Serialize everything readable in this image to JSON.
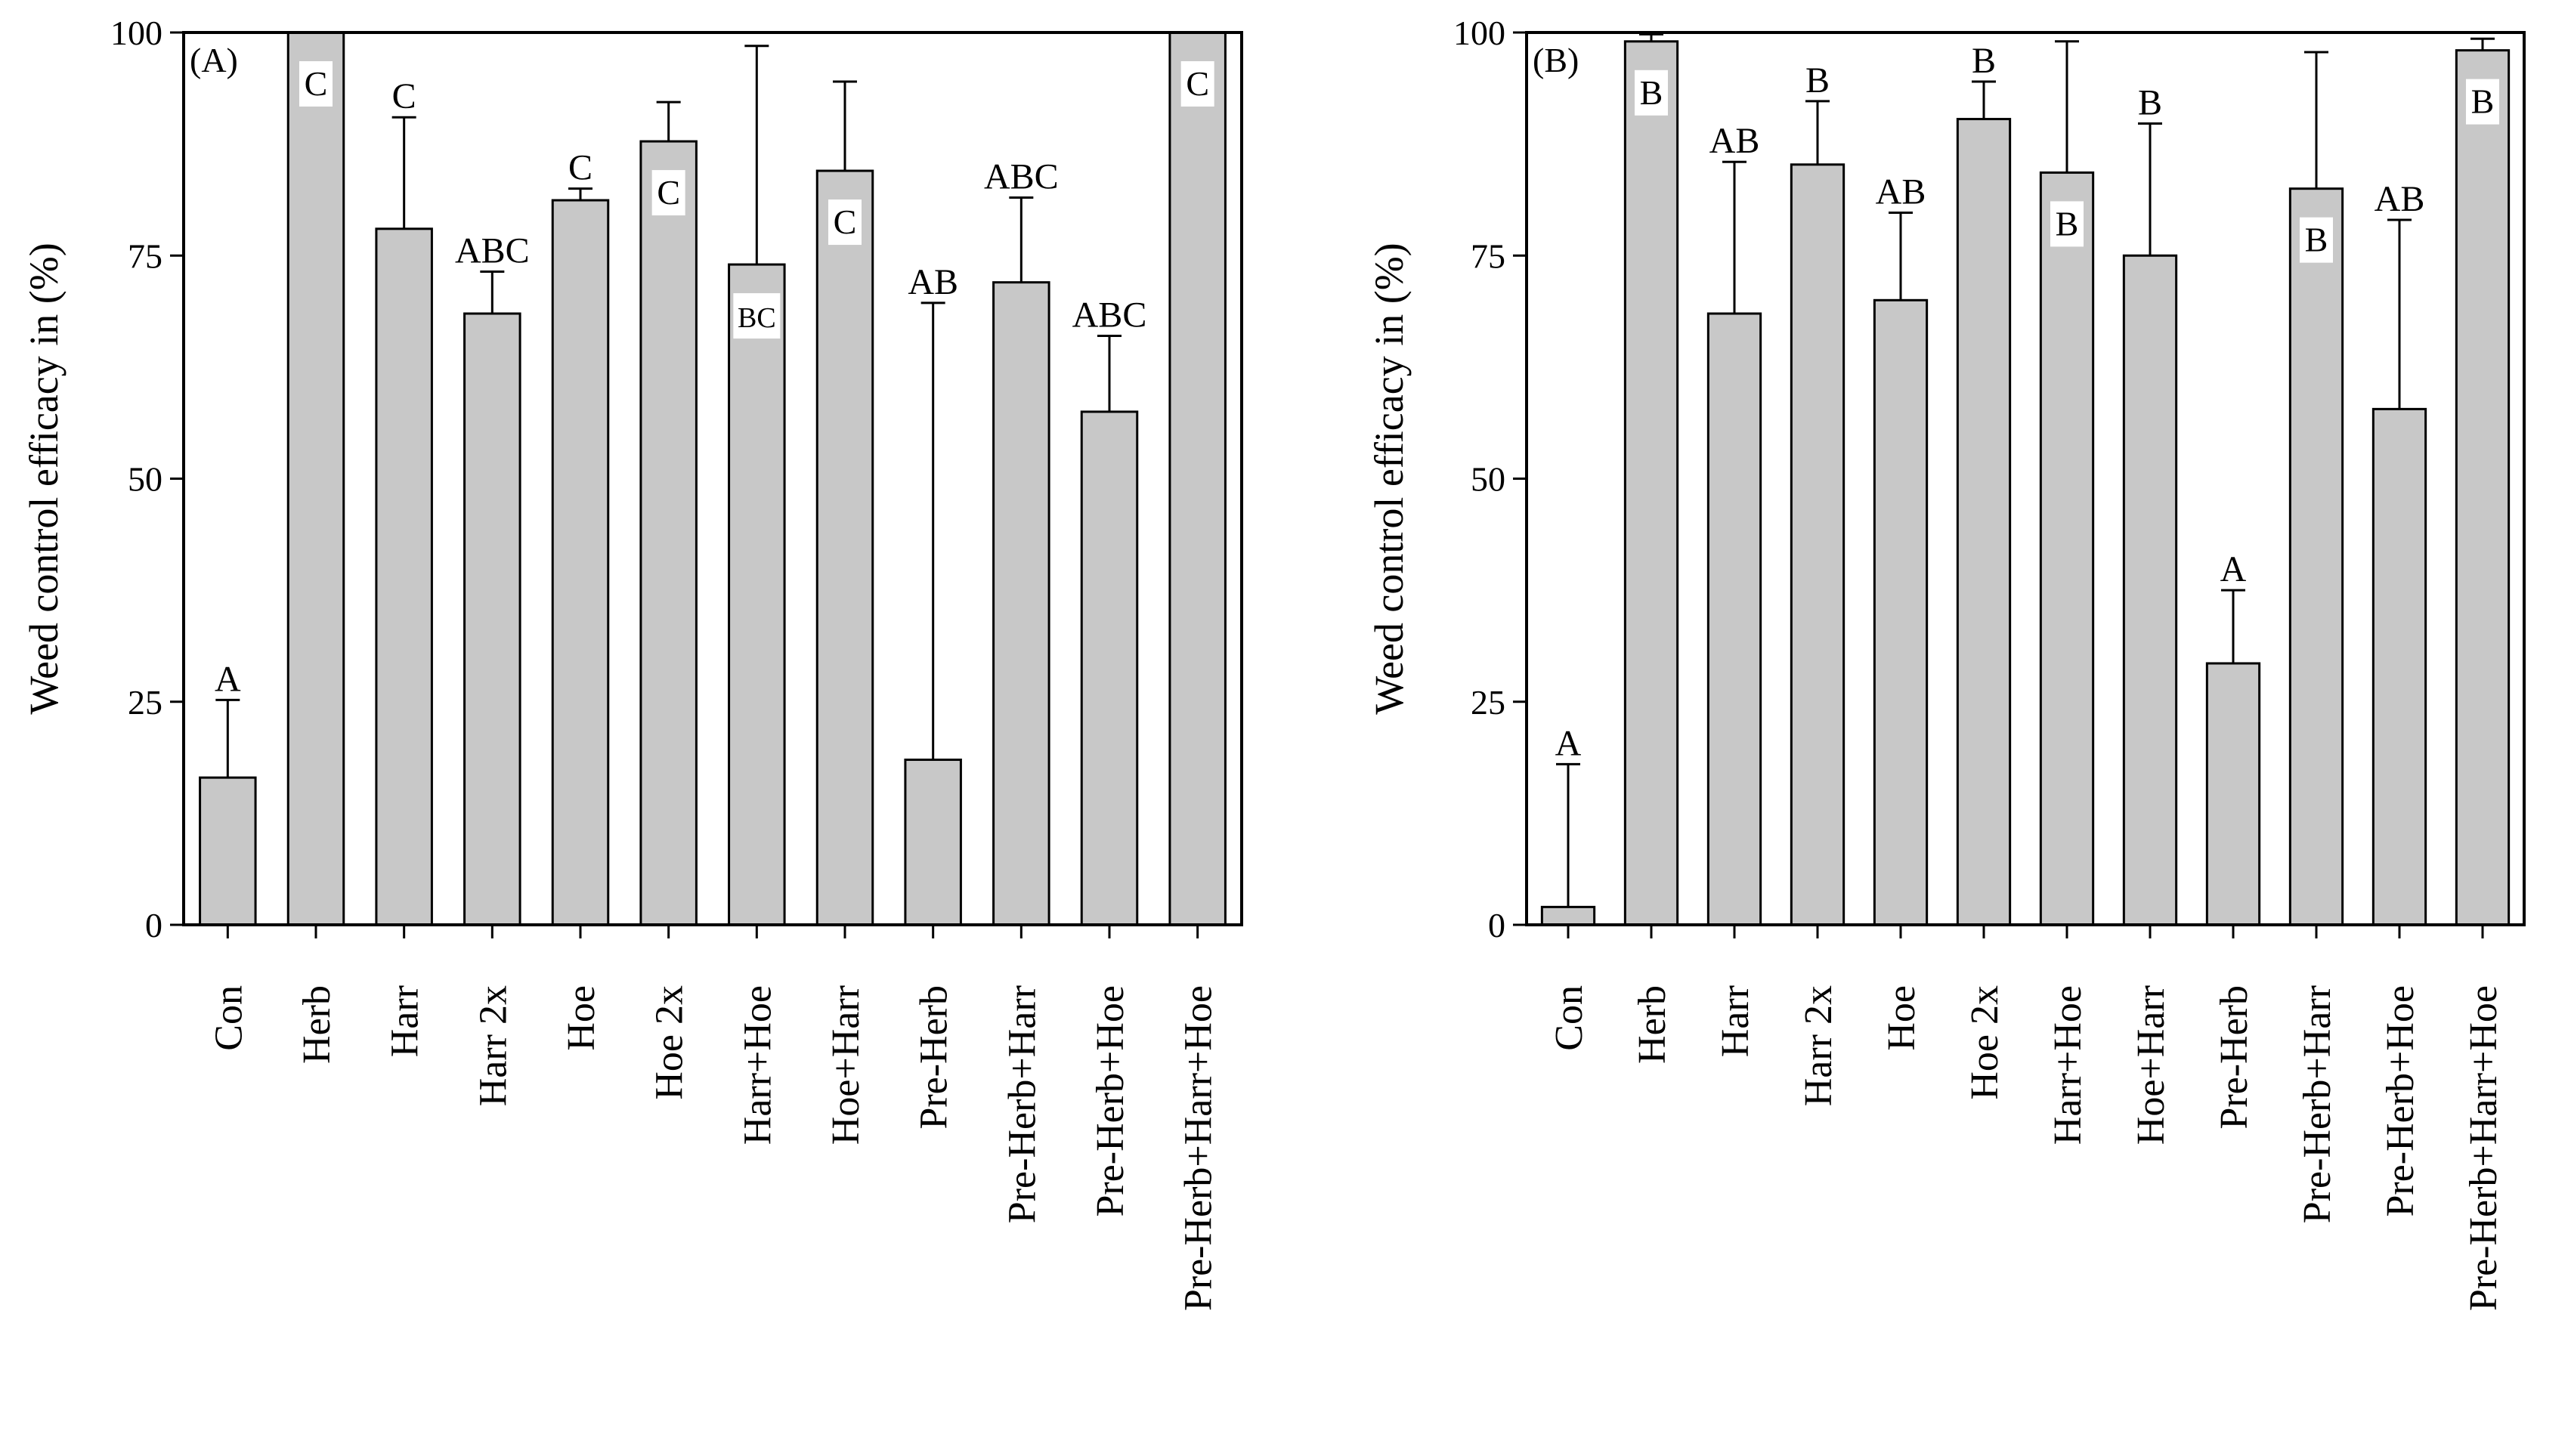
{
  "chart_data": [
    {
      "type": "bar",
      "panel_label": "(A)",
      "ylabel": "Weed control efficacy in (%)",
      "xlabel": "",
      "ylim": [
        0,
        100
      ],
      "yticks": [
        0,
        25,
        50,
        75,
        100
      ],
      "bar_color": "#c8c8c8",
      "categories": [
        "Con",
        "Herb",
        "Harr",
        "Harr 2x",
        "Hoe",
        "Hoe 2x",
        "Harr+Hoe",
        "Hoe+Harr",
        "Pre-Herb",
        "Pre-Herb+Harr",
        "Pre-Herb+Hoe",
        "Pre-Herb+Harr+Hoe"
      ],
      "values": [
        16.5,
        100,
        78,
        68.5,
        81.2,
        87.8,
        74,
        84.5,
        18.5,
        72,
        57.5,
        100
      ],
      "error_upper": [
        25.2,
        null,
        90.5,
        73.2,
        82.5,
        92.2,
        98.5,
        94.5,
        69.7,
        81.5,
        66,
        null
      ],
      "significance": [
        "A",
        "C",
        "C",
        "ABC",
        "C",
        "C",
        "BC",
        "C",
        "AB",
        "ABC",
        "ABC",
        "C"
      ],
      "significance_inside_bar": [
        false,
        true,
        false,
        false,
        false,
        true,
        true,
        true,
        false,
        false,
        false,
        true
      ]
    },
    {
      "type": "bar",
      "panel_label": "(B)",
      "ylabel": "Weed control efficacy in (%)",
      "xlabel": "",
      "ylim": [
        0,
        100
      ],
      "yticks": [
        0,
        25,
        50,
        75,
        100
      ],
      "bar_color": "#c8c8c8",
      "categories": [
        "Con",
        "Herb",
        "Harr",
        "Harr 2x",
        "Hoe",
        "Hoe 2x",
        "Harr+Hoe",
        "Hoe+Harr",
        "Pre-Herb",
        "Pre-Herb+Harr",
        "Pre-Herb+Hoe",
        "Pre-Herb+Harr+Hoe"
      ],
      "values": [
        2,
        99,
        68.5,
        85.2,
        70,
        90.3,
        84.3,
        75,
        29.3,
        82.5,
        57.8,
        98
      ],
      "error_upper": [
        18,
        99.8,
        85.5,
        92.3,
        79.8,
        94.5,
        99,
        89.8,
        37.5,
        97.8,
        79,
        99.3
      ],
      "significance": [
        "A",
        "B",
        "AB",
        "B",
        "AB",
        "B",
        "B",
        "B",
        "A",
        "B",
        "AB",
        "B"
      ],
      "significance_inside_bar": [
        false,
        true,
        false,
        false,
        false,
        false,
        true,
        false,
        false,
        true,
        false,
        true
      ]
    }
  ]
}
